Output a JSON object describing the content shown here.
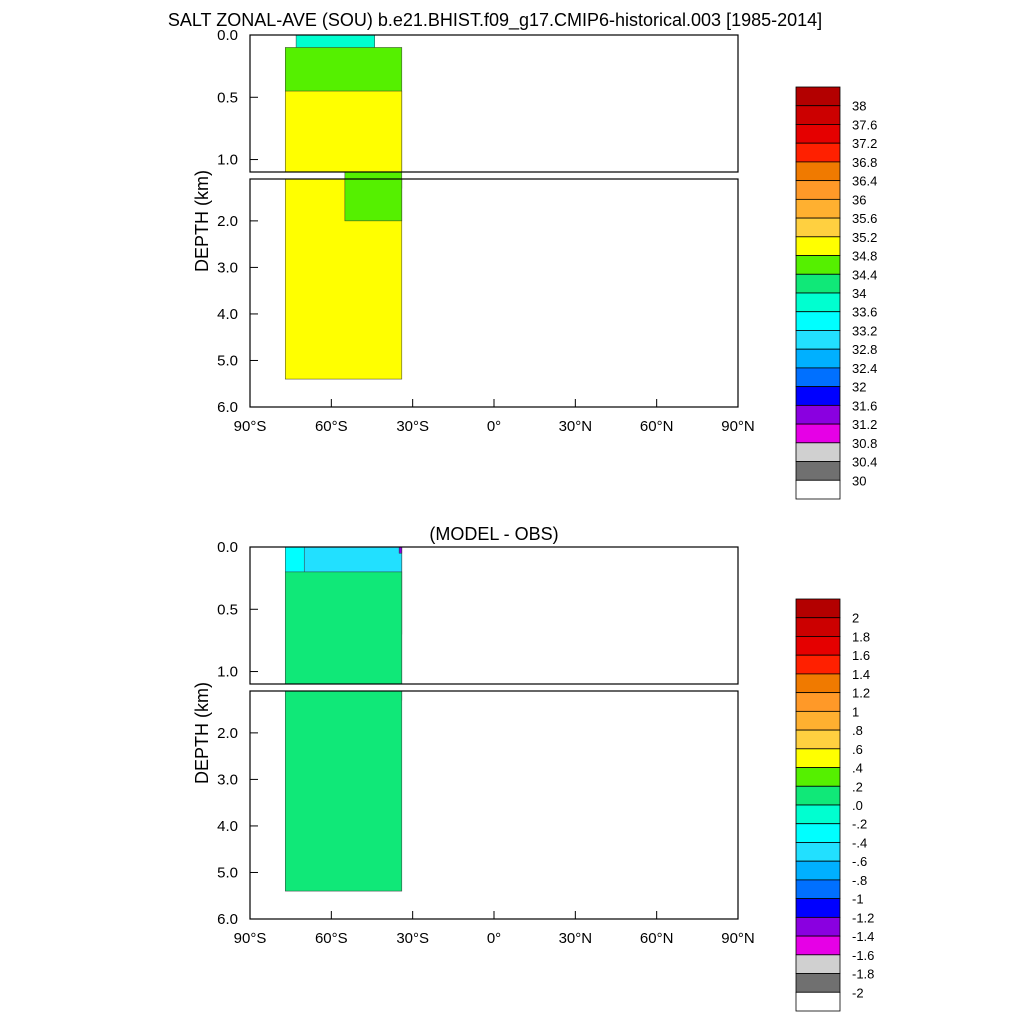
{
  "figure": {
    "title": "SALT ZONAL-AVE (SOU) b.e21.BHIST.f09_g17.CMIP6-historical.003 [1985-2014]"
  },
  "chart_data": [
    {
      "type": "heatmap",
      "title": "",
      "ylabel": "DEPTH (km)",
      "xlabel": "",
      "xlim": [
        -90,
        90
      ],
      "xticks": [
        -90,
        -60,
        -30,
        0,
        30,
        60,
        90
      ],
      "xtick_labels": [
        "90°S",
        "60°S",
        "30°S",
        "0°",
        "30°N",
        "60°N",
        "90°N"
      ],
      "ylim": [
        0,
        6
      ],
      "yticks_upper": [
        0,
        0.5,
        1.0
      ],
      "yticks_upper_labels": [
        "0.0",
        "0.5",
        "1.0"
      ],
      "yticks_lower": [
        2,
        3,
        4,
        5,
        6
      ],
      "yticks_lower_labels": [
        "2.0",
        "3.0",
        "4.0",
        "5.0",
        "6.0"
      ],
      "depth_break_km": 1.1,
      "data_lat_range": [
        -77,
        -34
      ],
      "max_depth_km": 5.4,
      "regions": [
        {
          "value": 33.6,
          "color": "#00ffd0",
          "depth_km": [
            0,
            0.75
          ],
          "lat": [
            -73,
            -44
          ]
        },
        {
          "value": 34.4,
          "color": "#55f000",
          "depth_km": [
            0.1,
            1.3
          ],
          "lat": [
            -77,
            -34
          ]
        },
        {
          "value": 34.8,
          "color": "#ffff00",
          "depth_km": [
            0.45,
            5.4
          ],
          "lat": [
            -77,
            -34
          ]
        },
        {
          "value": 34.4,
          "color": "#55f000",
          "depth_km": [
            1.1,
            2.0
          ],
          "lat": [
            -55,
            -34
          ]
        }
      ],
      "colorbar": {
        "labels": [
          "38",
          "37.6",
          "37.2",
          "36.8",
          "36.4",
          "36",
          "35.6",
          "35.2",
          "34.8",
          "34.4",
          "34",
          "33.6",
          "33.2",
          "32.8",
          "32.4",
          "32",
          "31.6",
          "31.2",
          "30.8",
          "30.4",
          "30"
        ],
        "colors": [
          "#b30000",
          "#cc0000",
          "#e50000",
          "#ff2000",
          "#f07a00",
          "#ff9928",
          "#ffb030",
          "#ffd040",
          "#ffff00",
          "#55f000",
          "#10e878",
          "#00ffd0",
          "#00ffff",
          "#22e0ff",
          "#00b0ff",
          "#0070ff",
          "#0000ff",
          "#8a00e0",
          "#e600e6",
          "#d0d0d0",
          "#707070",
          "#ffffff"
        ]
      }
    },
    {
      "type": "heatmap",
      "title": "(MODEL - OBS)",
      "ylabel": "DEPTH (km)",
      "xlabel": "",
      "xlim": [
        -90,
        90
      ],
      "xticks": [
        -90,
        -60,
        -30,
        0,
        30,
        60,
        90
      ],
      "xtick_labels": [
        "90°S",
        "60°S",
        "30°S",
        "0°",
        "30°N",
        "60°N",
        "90°N"
      ],
      "ylim": [
        0,
        6
      ],
      "yticks_upper": [
        0,
        0.5,
        1.0
      ],
      "yticks_upper_labels": [
        "0.0",
        "0.5",
        "1.0"
      ],
      "yticks_lower": [
        2,
        3,
        4,
        5,
        6
      ],
      "yticks_lower_labels": [
        "2.0",
        "3.0",
        "4.0",
        "5.0",
        "6.0"
      ],
      "depth_break_km": 1.1,
      "data_lat_range": [
        -77,
        -34
      ],
      "max_depth_km": 5.4,
      "regions": [
        {
          "value": -0.2,
          "color": "#00ffff",
          "depth_km": [
            0,
            1.3
          ],
          "lat": [
            -77,
            -34
          ]
        },
        {
          "value": -0.4,
          "color": "#22e0ff",
          "depth_km": [
            0,
            0.7
          ],
          "lat": [
            -70,
            -34
          ]
        },
        {
          "value": 0.0,
          "color": "#10e878",
          "depth_km": [
            0.2,
            5.4
          ],
          "lat": [
            -77,
            -34
          ]
        },
        {
          "value": -1.2,
          "color": "#8a00e0",
          "depth_km": [
            0,
            0.05
          ],
          "lat": [
            -35,
            -34
          ]
        }
      ],
      "colorbar": {
        "labels": [
          "2",
          "1.8",
          "1.6",
          "1.4",
          "1.2",
          "1",
          ".8",
          ".6",
          ".4",
          ".2",
          ".0",
          "-.2",
          "-.4",
          "-.6",
          "-.8",
          "-1",
          "-1.2",
          "-1.4",
          "-1.6",
          "-1.8",
          "-2"
        ],
        "colors": [
          "#b30000",
          "#cc0000",
          "#e50000",
          "#ff2000",
          "#f07a00",
          "#ff9928",
          "#ffb030",
          "#ffd040",
          "#ffff00",
          "#55f000",
          "#10e878",
          "#00ffd0",
          "#00ffff",
          "#22e0ff",
          "#00b0ff",
          "#0070ff",
          "#0000ff",
          "#8a00e0",
          "#e600e6",
          "#d0d0d0",
          "#707070",
          "#ffffff"
        ]
      }
    }
  ]
}
